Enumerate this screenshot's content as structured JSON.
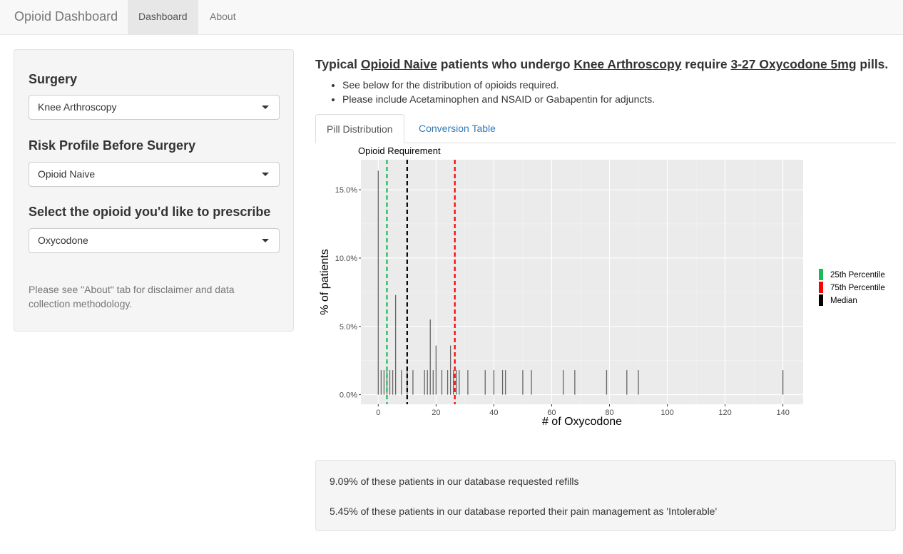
{
  "navbar": {
    "brand": "Opioid Dashboard",
    "tabs": [
      "Dashboard",
      "About"
    ]
  },
  "sidebar": {
    "surgery_label": "Surgery",
    "surgery_value": "Knee Arthroscopy",
    "risk_label": "Risk Profile Before Surgery",
    "risk_value": "Opioid Naive",
    "opioid_label": "Select the opioid you'd like to prescribe",
    "opioid_value": "Oxycodone",
    "note": "Please see \"About\" tab for disclaimer and data collection methodology."
  },
  "main": {
    "headline": {
      "p1": "Typical ",
      "risk": "Opioid Naive",
      "p2": " patients who undergo ",
      "surgery": "Knee Arthroscopy",
      "p3": " require ",
      "amount": "3-27 Oxycodone 5mg",
      "p4": " pills."
    },
    "bullets": [
      "See below for the distribution of opioids required.",
      "Please include Acetaminophen and NSAID or Gabapentin for adjuncts."
    ],
    "tabs": [
      "Pill Distribution",
      "Conversion Table"
    ],
    "stats": [
      "9.09% of these patients in our database requested refills",
      "5.45% of these patients in our database reported their pain management as 'Intolerable'"
    ]
  },
  "chart_data": {
    "type": "bar",
    "title": "Opioid Requirement",
    "xlabel": "# of Oxycodone",
    "ylabel": "% of patients",
    "xlim": [
      -6,
      147
    ],
    "ylim": [
      -0.7,
      17.2
    ],
    "xticks": [
      0,
      20,
      40,
      60,
      80,
      100,
      120,
      140
    ],
    "yticks": [
      0,
      5,
      10,
      15
    ],
    "ytick_labels": [
      "0.0%",
      "5.0%",
      "10.0%",
      "15.0%"
    ],
    "x": [
      0,
      1,
      2,
      3,
      4,
      5,
      6,
      8,
      10,
      12,
      16,
      17,
      18,
      19,
      20,
      22,
      24,
      25,
      26,
      27,
      28,
      31,
      37,
      40,
      43,
      44,
      50,
      53,
      64,
      68,
      79,
      86,
      90,
      140
    ],
    "values": [
      16.4,
      1.8,
      1.8,
      1.8,
      1.8,
      1.8,
      7.3,
      1.8,
      1.8,
      1.8,
      1.8,
      1.8,
      5.5,
      1.8,
      3.6,
      1.8,
      1.8,
      3.6,
      1.8,
      1.8,
      1.8,
      1.8,
      1.8,
      1.8,
      1.8,
      1.8,
      1.8,
      1.8,
      1.8,
      1.8,
      1.8,
      1.8,
      1.8,
      1.8
    ],
    "vlines": [
      {
        "name": "25th Percentile",
        "x": 3,
        "color": "#1db954"
      },
      {
        "name": "Median",
        "x": 10,
        "color": "#000000"
      },
      {
        "name": "75th Percentile",
        "x": 26.5,
        "color": "#ff0000"
      }
    ],
    "legend": [
      "25th Percentile",
      "75th Percentile",
      "Median"
    ],
    "legend_colors": [
      "#1db954",
      "#ff0000",
      "#000000"
    ],
    "legend_placement": "right",
    "grid": true,
    "panel_color": "#ebebeb"
  }
}
